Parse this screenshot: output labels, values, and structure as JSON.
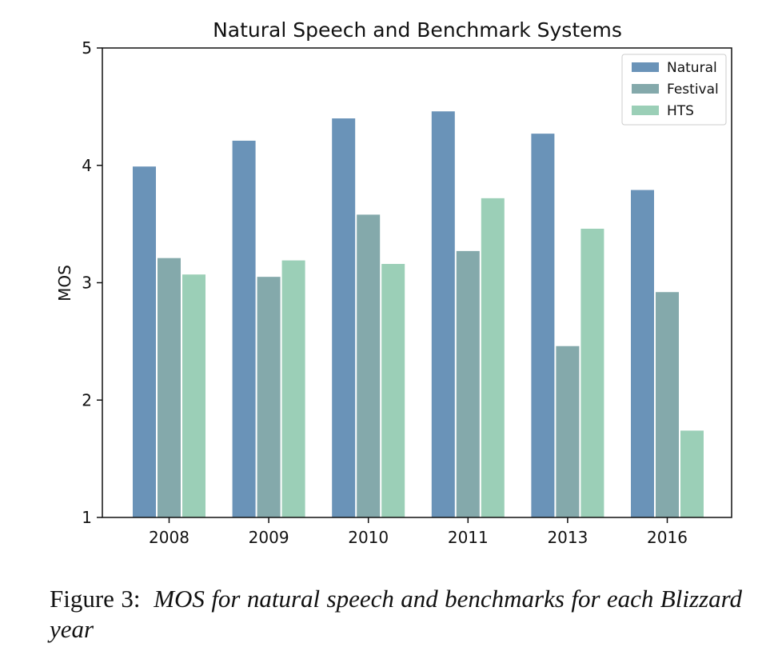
{
  "chart_data": {
    "type": "bar",
    "title": "Natural Speech and Benchmark Systems",
    "xlabel": "",
    "ylabel": "MOS",
    "categories": [
      "2008",
      "2009",
      "2010",
      "2011",
      "2013",
      "2016"
    ],
    "ylim": [
      1,
      5
    ],
    "yticks": [
      "1",
      "2",
      "3",
      "4",
      "5"
    ],
    "series": [
      {
        "name": "Natural",
        "values": [
          3.99,
          4.21,
          4.4,
          4.46,
          4.27,
          3.79
        ]
      },
      {
        "name": "Festival",
        "values": [
          3.21,
          3.05,
          3.58,
          3.27,
          2.46,
          2.92
        ]
      },
      {
        "name": "HTS",
        "values": [
          3.07,
          3.19,
          3.16,
          3.72,
          3.46,
          1.74
        ]
      }
    ],
    "legend": "top-right",
    "grid": false,
    "colors": [
      "#6a93b8",
      "#84a9ab",
      "#9bcfb7"
    ]
  },
  "caption": {
    "label": "Figure 3:",
    "text": "MOS for natural speech and benchmarks for each Blizzard year"
  }
}
